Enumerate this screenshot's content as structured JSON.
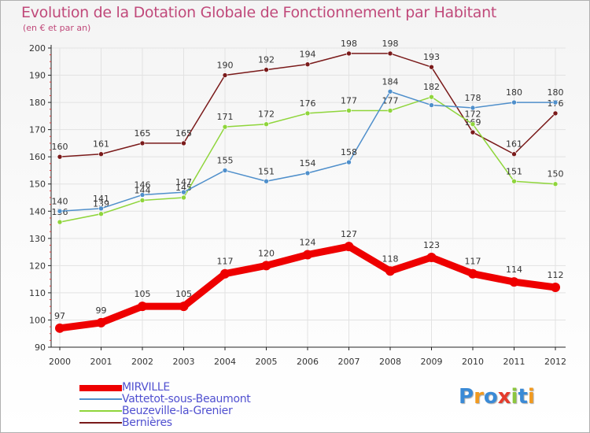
{
  "chart_data": {
    "type": "line",
    "title": "Evolution de la Dotation Globale de Fonctionnement par Habitant",
    "subtitle": "(en € et par an)",
    "xlabel": "",
    "ylabel": "",
    "ylim": [
      90,
      200
    ],
    "yticks": [
      "90",
      "100",
      "110",
      "120",
      "130",
      "140",
      "150",
      "160",
      "170",
      "180",
      "190",
      "200"
    ],
    "categories": [
      "2000",
      "2001",
      "2002",
      "2003",
      "2004",
      "2005",
      "2006",
      "2007",
      "2008",
      "2009",
      "2010",
      "2011",
      "2012"
    ],
    "grid": true,
    "legend_position": "bottom-left",
    "series": [
      {
        "name": "MIRVILLE",
        "color": "#ee0000",
        "values": [
          97,
          99,
          105,
          105,
          117,
          120,
          124,
          127,
          118,
          123,
          117,
          114,
          112
        ],
        "labels": [
          "97",
          "99",
          "105",
          "105",
          "117",
          "120",
          "124",
          "127",
          "118",
          "123",
          "117",
          "114",
          "112"
        ]
      },
      {
        "name": "Vattetot-sous-Beaumont",
        "color": "#4f8fcb",
        "values": [
          140,
          141,
          146,
          147,
          155,
          151,
          154,
          158,
          184,
          179,
          178,
          180,
          180
        ],
        "labels": [
          "140",
          "141",
          "146",
          "147",
          "155",
          "151",
          "154",
          "158",
          "184",
          "",
          "178",
          "180",
          "180"
        ]
      },
      {
        "name": "Beuzeville-la-Grenier",
        "color": "#8fd53b",
        "values": [
          136,
          139,
          144,
          145,
          171,
          172,
          176,
          177,
          177,
          182,
          172,
          151,
          150
        ],
        "labels": [
          "136",
          "139",
          "144",
          "145",
          "171",
          "172",
          "176",
          "177",
          "177",
          "182",
          "172",
          "151",
          "150"
        ]
      },
      {
        "name": "Bernières",
        "color": "#7a1a1a",
        "values": [
          160,
          161,
          165,
          165,
          190,
          192,
          194,
          198,
          198,
          193,
          169,
          161,
          176
        ],
        "labels": [
          "160",
          "161",
          "165",
          "165",
          "190",
          "192",
          "194",
          "198",
          "198",
          "193",
          "169",
          "161",
          "176"
        ]
      }
    ]
  },
  "logo": {
    "text": "Proxiti",
    "letters": [
      "P",
      "r",
      "o",
      "x",
      "i",
      "t",
      "i"
    ],
    "colors": [
      "#3a8ad6",
      "#f29a1f",
      "#3a8ad6",
      "#e53b2c",
      "#8cc63f",
      "#3a8ad6",
      "#f29a1f"
    ]
  }
}
